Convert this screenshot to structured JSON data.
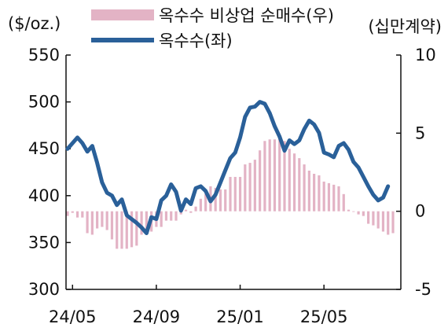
{
  "chart_data": {
    "type": "bar+line",
    "left_axis_label": "($/oz.)",
    "right_axis_label": "(십만계약)",
    "left_ylim": [
      300,
      550
    ],
    "left_ticks": [
      300,
      350,
      400,
      450,
      500,
      550
    ],
    "right_ylim": [
      -5,
      10
    ],
    "right_ticks": [
      -5,
      0,
      5,
      10
    ],
    "x_tick_labels": [
      "24/05",
      "24/09",
      "25/01",
      "25/05"
    ],
    "x_tick_index": [
      1,
      18,
      35,
      52
    ],
    "grid": false,
    "legend_position": "top",
    "series": [
      {
        "name": "옥수수 비상업 순매수(우)",
        "type": "bar",
        "axis": "right",
        "color": "#e3b3c5",
        "values": [
          -0.3,
          -0.1,
          -0.4,
          -0.4,
          -1.4,
          -1.5,
          -1.1,
          -1.0,
          -1.2,
          -1.8,
          -2.4,
          -2.4,
          -2.4,
          -2.3,
          -2.2,
          -1.5,
          -1.5,
          -1.3,
          -1.0,
          -1.0,
          -0.6,
          -0.6,
          -0.6,
          -0.2,
          0.1,
          -0.1,
          0.3,
          0.8,
          1.1,
          1.6,
          1.5,
          1.4,
          1.4,
          2.2,
          2.2,
          2.2,
          3.0,
          3.1,
          3.3,
          3.9,
          4.5,
          4.6,
          4.6,
          4.7,
          4.5,
          4.0,
          3.7,
          3.4,
          3.0,
          2.6,
          2.4,
          2.3,
          1.9,
          1.8,
          1.7,
          1.6,
          1.1,
          0.1,
          0.0,
          -0.2,
          -0.3,
          -0.8,
          -0.9,
          -1.1,
          -1.3,
          -1.5,
          -1.4
        ]
      },
      {
        "name": "옥수수(좌)",
        "type": "line",
        "axis": "left",
        "color": "#2a6099",
        "values": [
          450,
          456,
          462,
          456,
          447,
          453,
          435,
          414,
          403,
          400,
          390,
          396,
          379,
          375,
          371,
          366,
          360,
          377,
          375,
          395,
          400,
          412,
          404,
          384,
          396,
          391,
          408,
          410,
          405,
          394,
          401,
          414,
          427,
          440,
          446,
          462,
          484,
          494,
          495,
          500,
          498,
          488,
          474,
          463,
          448,
          459,
          455,
          459,
          471,
          480,
          476,
          467,
          446,
          444,
          441,
          453,
          456,
          449,
          436,
          430,
          420,
          410,
          401,
          395,
          398,
          410
        ]
      }
    ]
  }
}
